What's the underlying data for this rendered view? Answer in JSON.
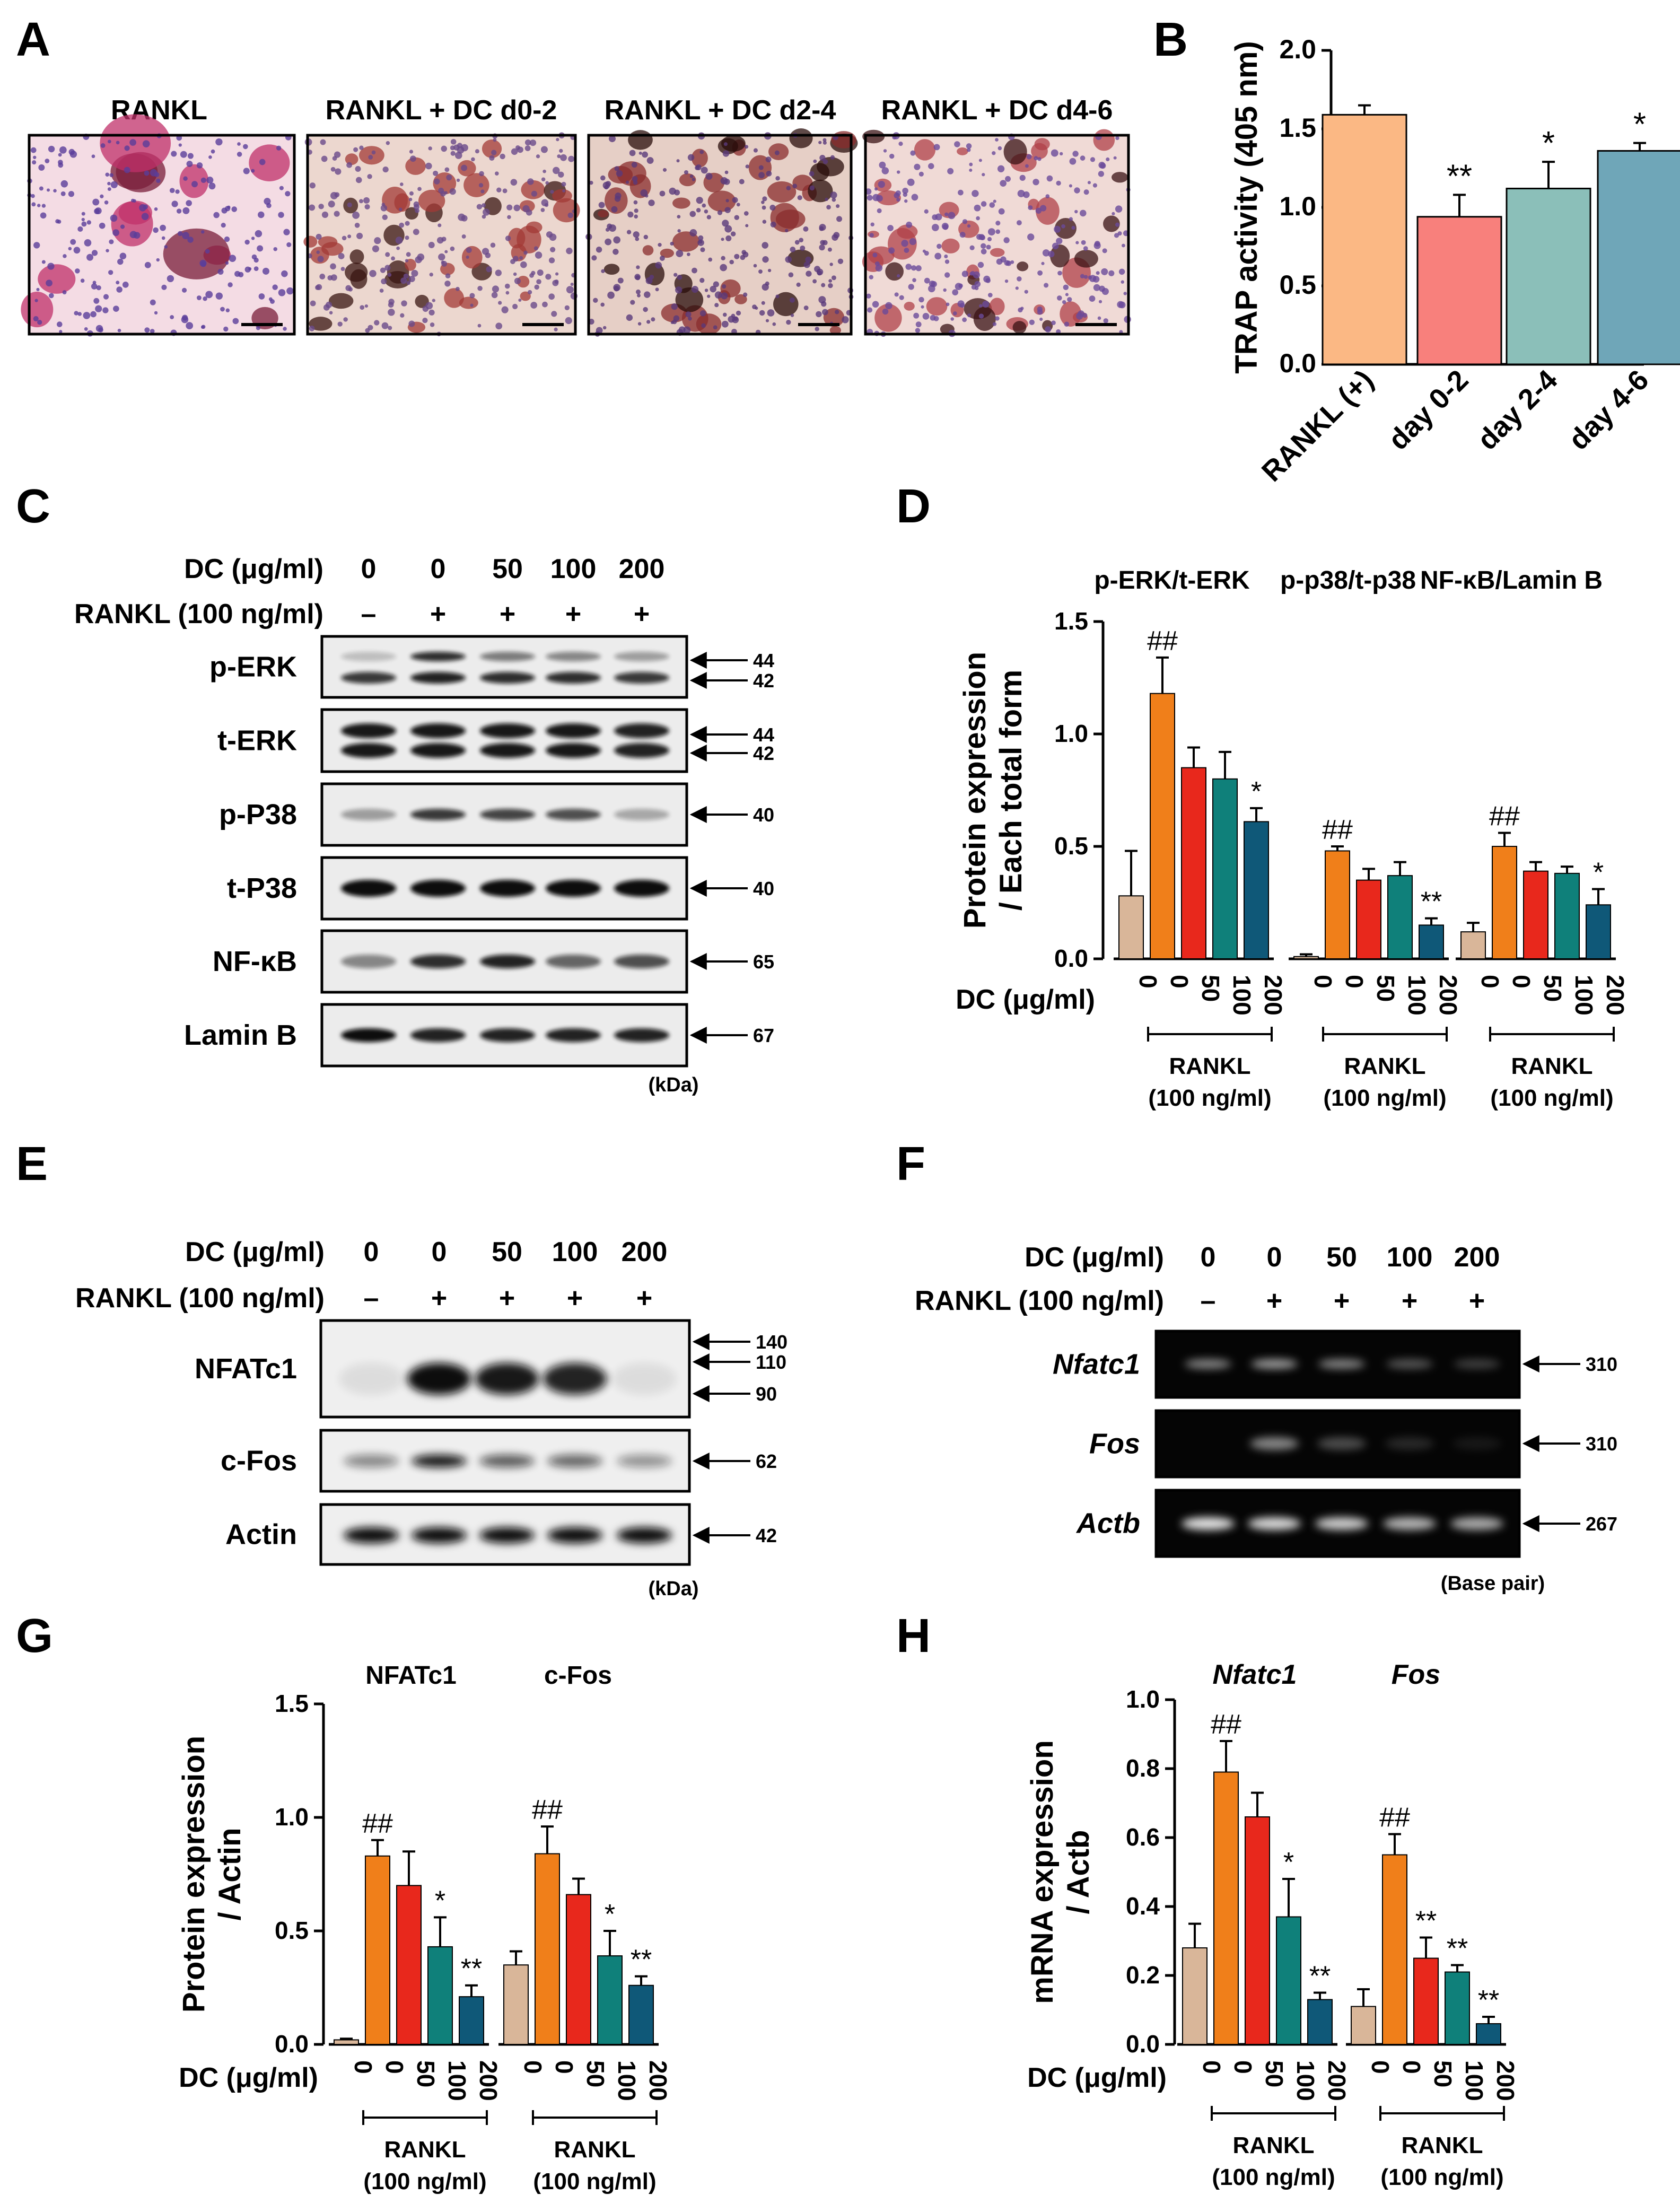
{
  "panel_letters": [
    "A",
    "B",
    "C",
    "D",
    "E",
    "F",
    "G",
    "H"
  ],
  "colors": {
    "tan": "#d9b699",
    "orange": "#f07f1a",
    "red": "#e8281c",
    "teal": "#0f807a",
    "navy": "#0f5878",
    "b_peach": "#fbb884",
    "b_salmon": "#f8807c",
    "b_teal": "#8bbfb9",
    "b_blue": "#6fa6b8"
  },
  "panel_a": {
    "labels": [
      "RANKL",
      "RANKL + DC d0-2",
      "RANKL + DC d2-4",
      "RANKL + DC d4-6"
    ]
  },
  "common": {
    "dc_label": "DC (μg/ml)",
    "rankl_label": "RANKL (100 ng/ml)",
    "dc_doses": [
      "0",
      "0",
      "50",
      "100",
      "200"
    ],
    "rankl_signs": [
      "–",
      "+",
      "+",
      "+",
      "+"
    ],
    "kda": "(kDa)",
    "base_pair": "(Base pair)",
    "rankl_group": "RANKL",
    "rankl_conc": "(100 ng/ml)"
  },
  "panel_c": {
    "blots": [
      {
        "label": "p-ERK",
        "markers": [
          "44",
          "42"
        ]
      },
      {
        "label": "t-ERK",
        "markers": [
          "44",
          "42"
        ]
      },
      {
        "label": "p-P38",
        "markers": [
          "40"
        ]
      },
      {
        "label": "t-P38",
        "markers": [
          "40"
        ]
      },
      {
        "label": "NF-κB",
        "markers": [
          "65"
        ]
      },
      {
        "label": "Lamin B",
        "markers": [
          "67"
        ]
      }
    ]
  },
  "panel_e": {
    "blots": [
      {
        "label": "NFATc1",
        "markers": [
          "140",
          "110",
          "90"
        ]
      },
      {
        "label": "c-Fos",
        "markers": [
          "62"
        ]
      },
      {
        "label": "Actin",
        "markers": [
          "42"
        ]
      }
    ]
  },
  "panel_f": {
    "gels": [
      {
        "label": "Nfatc1",
        "markers": [
          "310"
        ]
      },
      {
        "label": "Fos",
        "markers": [
          "310"
        ]
      },
      {
        "label": "Actb",
        "markers": [
          "267"
        ]
      }
    ]
  },
  "chart_data": [
    {
      "panel": "B",
      "type": "bar",
      "ylabel": "TRAP activity (405 nm)",
      "ylim": [
        0,
        2.0
      ],
      "yticks": [
        "0.0",
        "0.5",
        "1.0",
        "1.5",
        "2.0"
      ],
      "categories": [
        "RANKL (+)",
        "day 0-2",
        "day 2-4",
        "day 4-6"
      ],
      "values": [
        1.59,
        0.94,
        1.12,
        1.36
      ],
      "errors": [
        0.06,
        0.14,
        0.17,
        0.05
      ],
      "sig": [
        "",
        "**",
        "*",
        "*"
      ]
    },
    {
      "panel": "D",
      "type": "bar",
      "ylabel": [
        "Protein expression",
        "/ Each total form"
      ],
      "ylim": [
        0,
        1.5
      ],
      "yticks": [
        "0.0",
        "0.5",
        "1.0",
        "1.5"
      ],
      "series": [
        {
          "name": "p-ERK/t-ERK",
          "values": [
            0.28,
            1.18,
            0.85,
            0.8,
            0.61
          ],
          "errors": [
            0.2,
            0.16,
            0.09,
            0.12,
            0.06
          ],
          "sig": [
            "",
            "##",
            "",
            "",
            "*"
          ]
        },
        {
          "name": "p-p38/t-p38",
          "values": [
            0.01,
            0.48,
            0.35,
            0.37,
            0.15
          ],
          "errors": [
            0.01,
            0.02,
            0.05,
            0.06,
            0.03
          ],
          "sig": [
            "",
            "##",
            "",
            "",
            "**"
          ]
        },
        {
          "name": "NF-κB/Lamin B",
          "values": [
            0.12,
            0.5,
            0.39,
            0.38,
            0.24
          ],
          "errors": [
            0.04,
            0.06,
            0.04,
            0.03,
            0.07
          ],
          "sig": [
            "",
            "##",
            "",
            "",
            "*"
          ]
        }
      ]
    },
    {
      "panel": "G",
      "type": "bar",
      "ylabel": [
        "Protein expression",
        "/ Actin"
      ],
      "ylim": [
        0,
        1.5
      ],
      "yticks": [
        "0.0",
        "0.5",
        "1.0",
        "1.5"
      ],
      "series": [
        {
          "name": "NFATc1",
          "values": [
            0.02,
            0.83,
            0.7,
            0.43,
            0.21
          ],
          "errors": [
            0.005,
            0.07,
            0.15,
            0.13,
            0.05
          ],
          "sig": [
            "",
            "##",
            "",
            "*",
            "**"
          ]
        },
        {
          "name": "c-Fos",
          "values": [
            0.35,
            0.84,
            0.66,
            0.39,
            0.26
          ],
          "errors": [
            0.06,
            0.12,
            0.07,
            0.11,
            0.04
          ],
          "sig": [
            "",
            "##",
            "",
            "*",
            "**"
          ]
        }
      ]
    },
    {
      "panel": "H",
      "type": "bar",
      "ylabel": [
        "mRNA expression",
        "/ Actb"
      ],
      "ylim": [
        0,
        1.0
      ],
      "yticks": [
        "0.0",
        "0.2",
        "0.4",
        "0.6",
        "0.8",
        "1.0"
      ],
      "series": [
        {
          "name": "Nfatc1",
          "values": [
            0.28,
            0.79,
            0.66,
            0.37,
            0.13
          ],
          "errors": [
            0.07,
            0.09,
            0.07,
            0.11,
            0.02
          ],
          "sig": [
            "",
            "##",
            "",
            "*",
            "**"
          ]
        },
        {
          "name": "Fos",
          "values": [
            0.11,
            0.55,
            0.25,
            0.21,
            0.06
          ],
          "errors": [
            0.05,
            0.06,
            0.06,
            0.02,
            0.02
          ],
          "sig": [
            "",
            "##",
            "**",
            "**",
            "**"
          ]
        }
      ]
    }
  ]
}
